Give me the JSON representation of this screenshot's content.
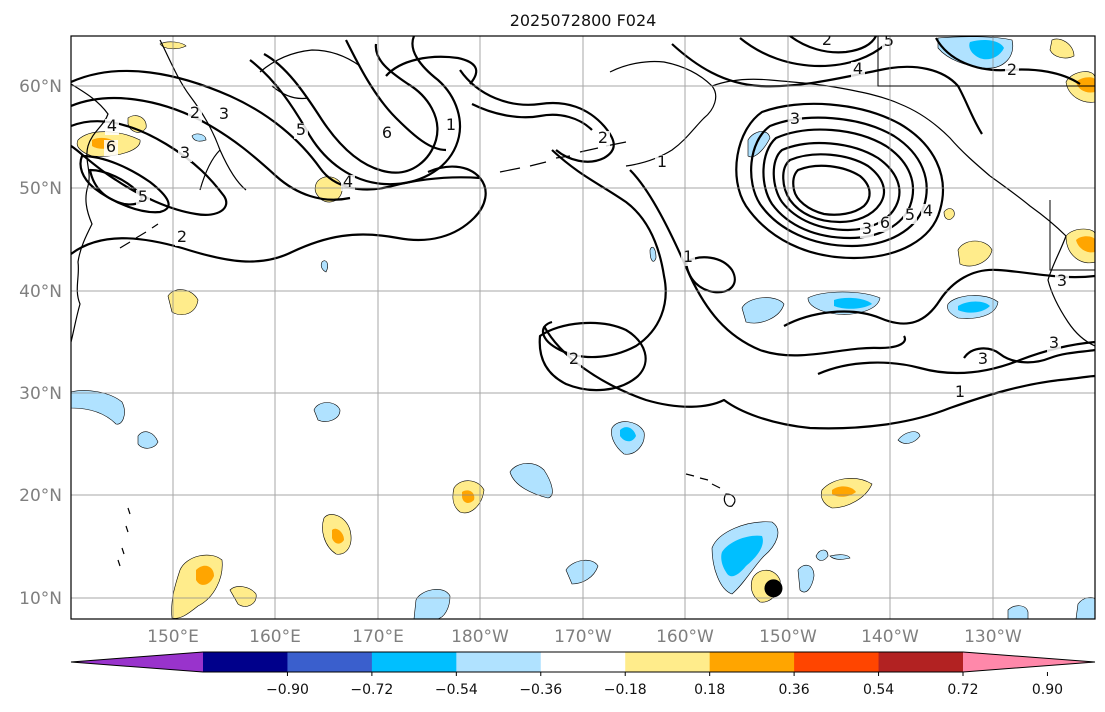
{
  "title": "2025072800 F024",
  "map": {
    "lat_labels": [
      "60°N",
      "50°N",
      "40°N",
      "30°N",
      "20°N",
      "10°N"
    ],
    "lon_labels": [
      "150°E",
      "160°E",
      "170°E",
      "180°W",
      "170°W",
      "160°W",
      "150°W",
      "140°W",
      "130°W"
    ],
    "extent": {
      "lon_min": 140,
      "lon_max": 240,
      "lat_min": 8,
      "lat_max": 65
    },
    "gridlines": true,
    "contour_labels": [
      "4",
      "6",
      "2",
      "3",
      "3",
      "5",
      "2",
      "5",
      "6",
      "4",
      "1",
      "2",
      "1",
      "1",
      "2",
      "2",
      "5",
      "4",
      "3",
      "3",
      "6",
      "5",
      "4",
      "2",
      "3",
      "3",
      "3",
      "1"
    ],
    "marker": {
      "lon": 208.6,
      "lat": 11,
      "color": "#000000"
    }
  },
  "colorbar": {
    "ticks": [
      "−0.90",
      "−0.72",
      "−0.54",
      "−0.36",
      "−0.18",
      "0.18",
      "0.36",
      "0.54",
      "0.72",
      "0.90"
    ],
    "colors": [
      "#9933cc",
      "#00008b",
      "#3a5fcd",
      "#00bfff",
      "#b0e2ff",
      "#ffffff",
      "#ffec8b",
      "#ffa500",
      "#ff4500",
      "#b22222",
      "#ff88aa"
    ]
  }
}
